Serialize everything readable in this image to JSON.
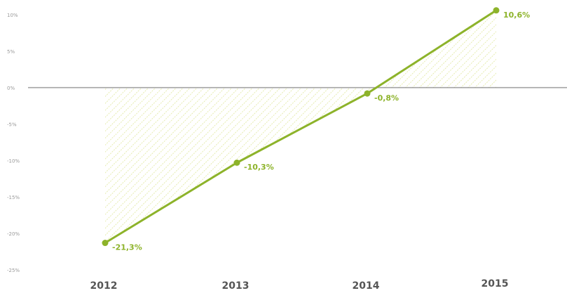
{
  "chart_data": {
    "type": "line",
    "categories": [
      "2012",
      "2013",
      "2014",
      "2015"
    ],
    "series": [
      {
        "values": [
          -21.3,
          -10.3,
          -0.8,
          10.6
        ]
      }
    ],
    "data_labels": [
      "-21,3%",
      "-10,3%",
      "-0,8%",
      "10,6%"
    ],
    "ylim": [
      -25,
      10
    ],
    "yticks": [
      10,
      5,
      0,
      -5,
      -10,
      -15,
      -20,
      -25
    ],
    "ytick_labels": [
      "10%",
      "5%",
      "0%",
      "-5%",
      "-10%",
      "-15%",
      "-20%",
      "-25%"
    ],
    "fill_to_zero": "hatched",
    "grid": false,
    "colors": {
      "line": "#8db32a",
      "hatch": "#dfe79a",
      "axis": "#8a8a8a"
    }
  }
}
